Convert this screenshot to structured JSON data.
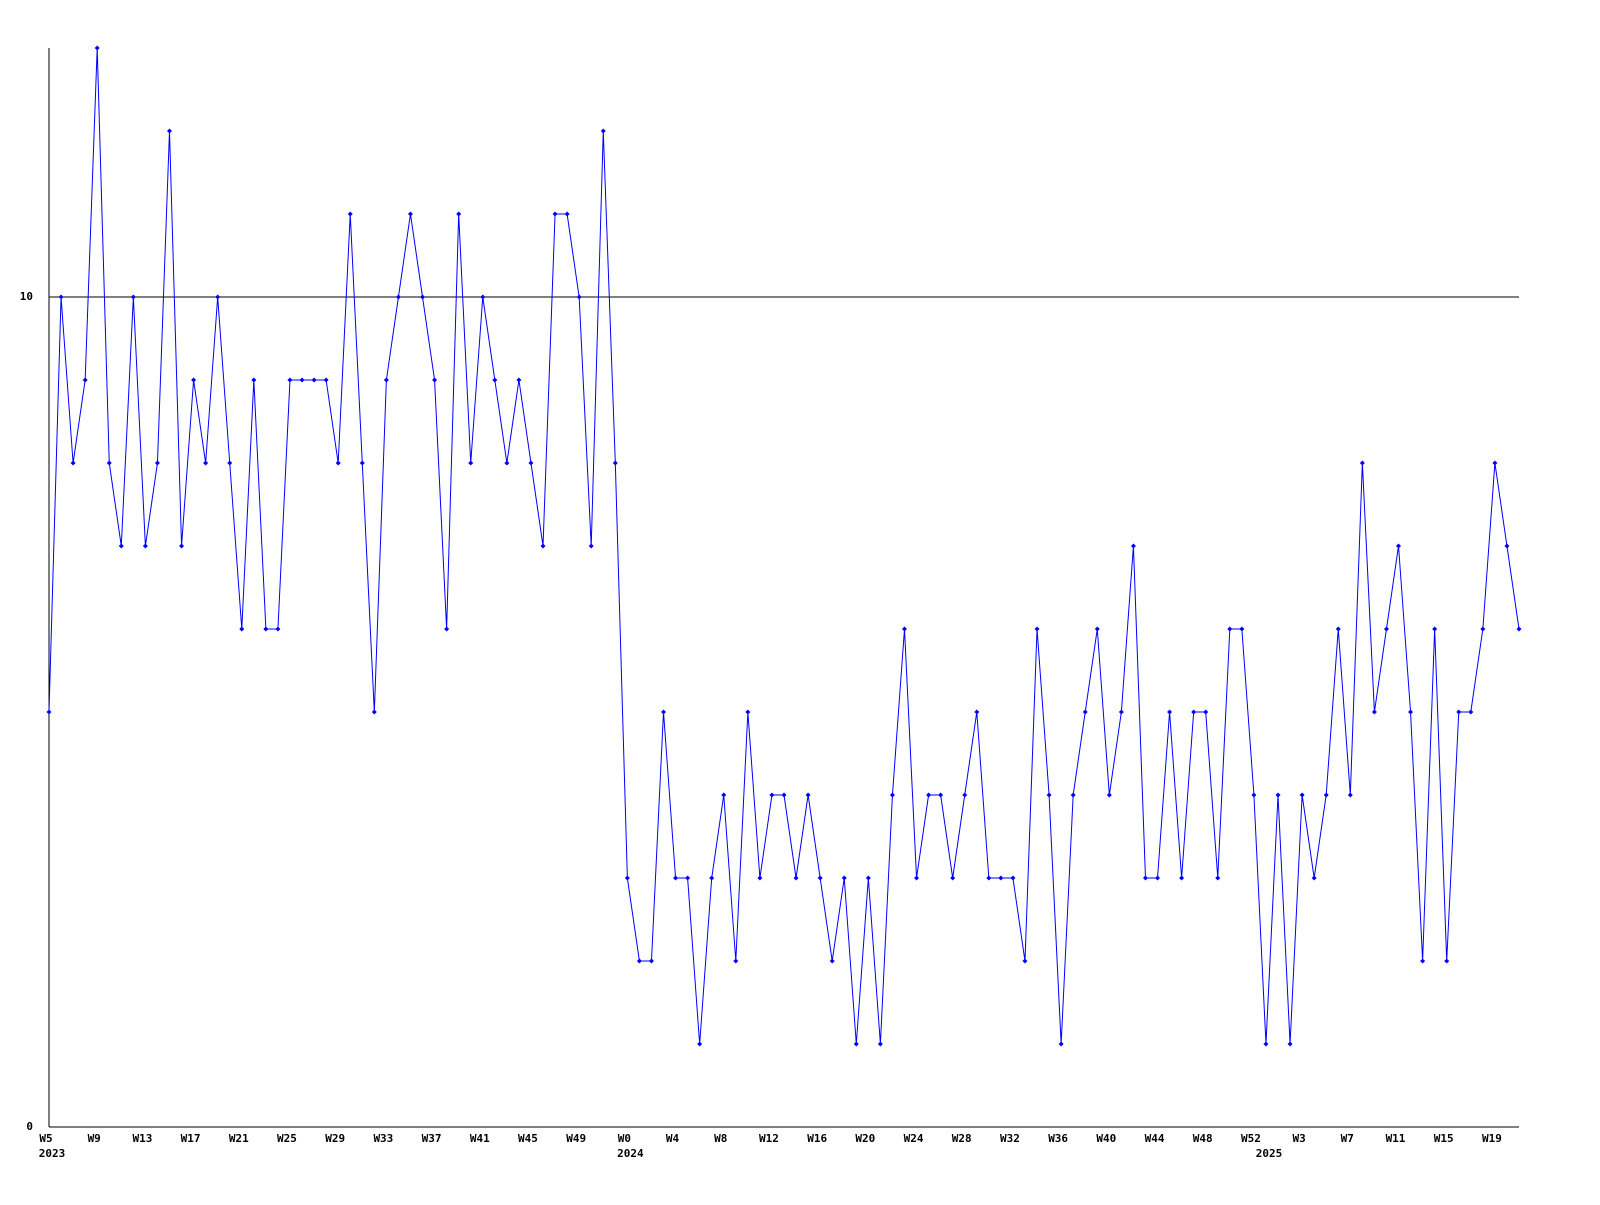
{
  "chart_data": {
    "type": "line",
    "categories": [
      "W5",
      null,
      null,
      null,
      "W9",
      null,
      null,
      null,
      "W13",
      null,
      null,
      null,
      "W17",
      null,
      null,
      null,
      "W21",
      null,
      null,
      null,
      "W25",
      null,
      null,
      null,
      "W29",
      null,
      null,
      null,
      "W33",
      null,
      null,
      null,
      "W37",
      null,
      null,
      null,
      "W41",
      null,
      null,
      null,
      "W45",
      null,
      null,
      null,
      "W49",
      null,
      null,
      null,
      "W0",
      null,
      null,
      null,
      "W4",
      null,
      null,
      null,
      "W8",
      null,
      null,
      null,
      "W12",
      null,
      null,
      null,
      "W16",
      null,
      null,
      null,
      "W20",
      null,
      null,
      null,
      "W24",
      null,
      null,
      null,
      "W28",
      null,
      null,
      null,
      "W32",
      null,
      null,
      null,
      "W36",
      null,
      null,
      null,
      "W40",
      null,
      null,
      null,
      "W44",
      null,
      null,
      null,
      "W48",
      null,
      null,
      null,
      "W52",
      null,
      null,
      null,
      "W3",
      null,
      null,
      null,
      "W7",
      null,
      null,
      null,
      "W11",
      null,
      null,
      null,
      "W15",
      null,
      null,
      null,
      "W19",
      null,
      null
    ],
    "years": [
      "2023",
      null,
      null,
      null,
      null,
      null,
      null,
      null,
      null,
      null,
      null,
      null,
      null,
      null,
      null,
      null,
      null,
      null,
      null,
      null,
      null,
      null,
      null,
      null,
      null,
      null,
      null,
      null,
      null,
      null,
      null,
      null,
      null,
      null,
      null,
      null,
      null,
      null,
      null,
      null,
      null,
      null,
      null,
      null,
      null,
      null,
      null,
      null,
      "2024",
      null,
      null,
      null,
      null,
      null,
      null,
      null,
      null,
      null,
      null,
      null,
      null,
      null,
      null,
      null,
      null,
      null,
      null,
      null,
      null,
      null,
      null,
      null,
      null,
      null,
      null,
      null,
      null,
      null,
      null,
      null,
      null,
      null,
      null,
      null,
      null,
      null,
      null,
      null,
      null,
      null,
      null,
      null,
      null,
      null,
      null,
      null,
      null,
      null,
      null,
      null,
      null,
      "2025",
      null,
      null,
      null,
      null,
      null,
      null,
      null,
      null,
      null,
      null,
      null,
      null,
      null,
      null,
      null,
      null,
      null,
      null,
      null,
      null,
      null
    ],
    "series": [
      {
        "color": "#0000ff",
        "values": [
          5,
          10,
          8,
          9,
          13,
          8,
          7,
          10,
          7,
          8,
          12,
          7,
          9,
          8,
          10,
          8,
          6,
          9,
          6,
          6,
          9,
          9,
          9,
          9,
          8,
          11,
          8,
          5,
          9,
          10,
          11,
          10,
          9,
          6,
          11,
          8,
          10,
          9,
          8,
          9,
          8,
          7,
          11,
          11,
          10,
          7,
          12,
          8,
          3,
          2,
          2,
          5,
          3,
          3,
          1,
          3,
          4,
          2,
          5,
          3,
          4,
          4,
          3,
          4,
          3,
          2,
          3,
          1,
          3,
          1,
          4,
          6,
          3,
          4,
          4,
          3,
          4,
          5,
          3,
          3,
          3,
          2,
          6,
          4,
          1,
          4,
          5,
          6,
          4,
          5,
          7,
          3,
          3,
          5,
          3,
          5,
          5,
          3,
          6,
          6,
          4,
          1,
          4,
          1,
          4,
          3,
          4,
          6,
          4,
          8,
          5,
          6,
          7,
          5,
          2,
          6,
          2,
          5,
          5,
          6,
          8,
          7,
          6
        ]
      }
    ],
    "ylim": [
      0,
      13
    ],
    "yticks": [
      0,
      10
    ],
    "grid": true
  }
}
